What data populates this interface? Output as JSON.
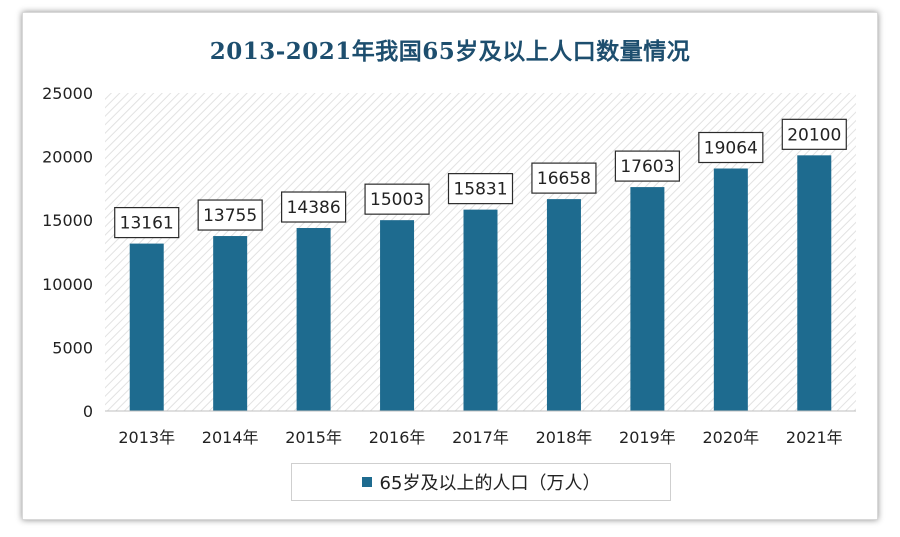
{
  "chart_data": {
    "type": "bar",
    "title": "2013-2021年我国65岁及以上人口数量情况",
    "categories": [
      "2013年",
      "2014年",
      "2015年",
      "2016年",
      "2017年",
      "2018年",
      "2019年",
      "2020年",
      "2021年"
    ],
    "series": [
      {
        "name": "65岁及以上的人口（万人）",
        "values": [
          13161,
          13755,
          14386,
          15003,
          15831,
          16658,
          17603,
          19064,
          20100
        ]
      }
    ],
    "ylim": [
      0,
      25000
    ],
    "yticks": [
      "0",
      "5000",
      "10000",
      "15000",
      "20000",
      "25000"
    ],
    "data_labels": [
      "13161",
      "13755",
      "14386",
      "15003",
      "15831",
      "16658",
      "17603",
      "19064",
      "20100"
    ],
    "grid": false,
    "legend": "bottom",
    "colors": {
      "bar": "#1e6b8f",
      "title": "#1d4e6e"
    }
  }
}
